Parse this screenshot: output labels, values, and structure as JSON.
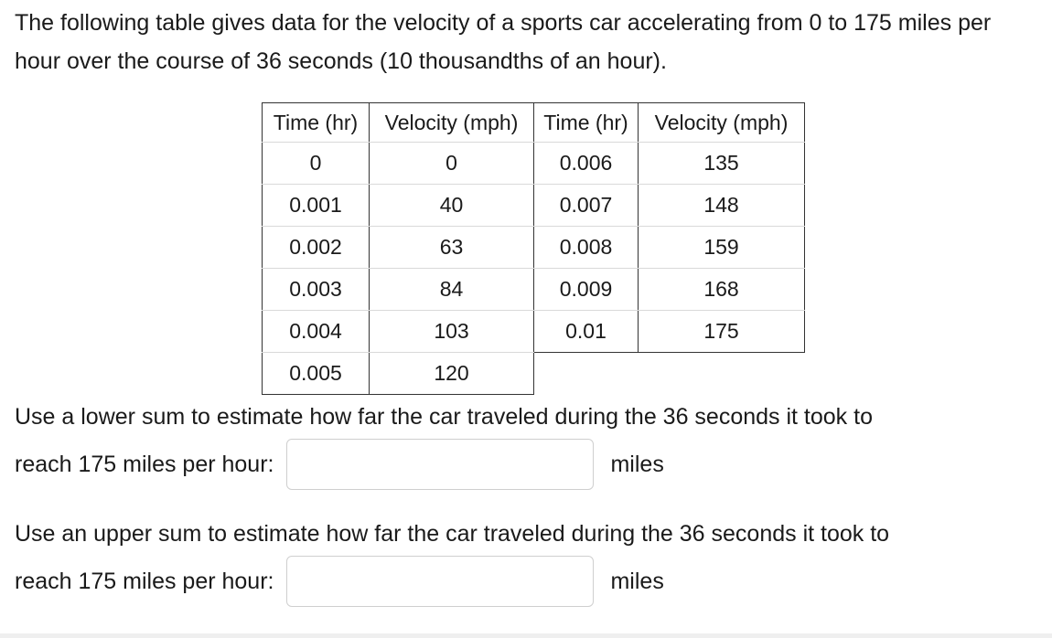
{
  "intro": "The following table gives data for the velocity of a sports car accelerating from 0 to 175 miles per hour over the course of 36 seconds (10 thousandths of an hour).",
  "table": {
    "headers": [
      "Time (hr)",
      "Velocity (mph)",
      "Time (hr)",
      "Velocity (mph)"
    ],
    "rows": [
      [
        "0",
        "0",
        "0.006",
        "135"
      ],
      [
        "0.001",
        "40",
        "0.007",
        "148"
      ],
      [
        "0.002",
        "63",
        "0.008",
        "159"
      ],
      [
        "0.003",
        "84",
        "0.009",
        "168"
      ],
      [
        "0.004",
        "103",
        "0.01",
        "175"
      ],
      [
        "0.005",
        "120",
        "",
        ""
      ]
    ]
  },
  "questions": [
    {
      "line1": "Use a lower sum to estimate how far the car traveled during the 36 seconds it took to",
      "line2": "reach 175 miles per hour:",
      "value": "",
      "unit": "miles"
    },
    {
      "line1": "Use an upper sum to estimate how far the car traveled during the 36 seconds it took to",
      "line2": "reach 175 miles per hour:",
      "value": "",
      "unit": "miles"
    }
  ],
  "colors": {
    "table_outer_border": "#333333",
    "table_row_divider": "#d9d9d9",
    "input_border": "#cfcfcf"
  }
}
